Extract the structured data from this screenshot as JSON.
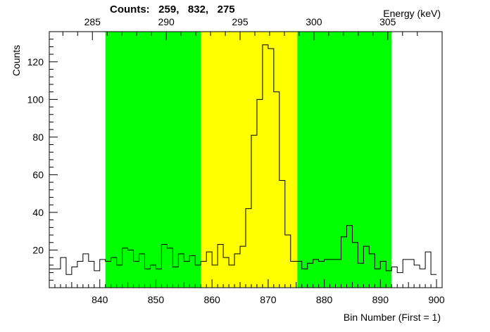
{
  "header": {
    "counts_label": "Counts:",
    "counts_values": [
      "259,",
      "832,",
      "275"
    ]
  },
  "chart_data": {
    "type": "histogram",
    "xlabel": "Bin Number (First = 1)",
    "ylabel": "Counts",
    "top_axis_label": "Energy (keV)",
    "xlim": [
      831,
      901
    ],
    "ylim": [
      0,
      136
    ],
    "x_ticks": [
      840,
      850,
      860,
      870,
      880,
      890,
      900
    ],
    "y_ticks": [
      20,
      40,
      60,
      80,
      100,
      120
    ],
    "top_ticks": [
      285,
      290,
      295,
      300,
      305
    ],
    "top_axis_map": {
      "bin_a": 840,
      "keV_a": 285.5,
      "bin_b": 890,
      "keV_b": 304.5
    },
    "bins": {
      "start": 831,
      "width": 1,
      "counts": [
        10,
        10,
        16,
        7,
        11,
        14,
        18,
        14,
        9,
        15,
        14,
        16,
        12,
        21,
        20,
        14,
        18,
        10,
        12,
        10,
        23,
        21,
        11,
        18,
        14,
        17,
        12,
        14,
        19,
        12,
        23,
        16,
        12,
        18,
        22,
        42,
        81,
        100,
        129,
        127,
        104,
        57,
        28,
        14,
        14,
        10,
        13,
        15,
        14,
        15,
        15,
        15,
        27,
        33,
        24,
        13,
        22,
        18,
        10,
        14,
        9,
        11,
        8,
        15,
        15,
        12,
        10,
        19,
        7
      ]
    },
    "regions": [
      {
        "name": "background-left",
        "from": 841,
        "to": 858,
        "color": "#00ff00"
      },
      {
        "name": "peak",
        "from": 858,
        "to": 875.2,
        "color": "#ffff00"
      },
      {
        "name": "background-right",
        "from": 875.2,
        "to": 892,
        "color": "#00ff00"
      }
    ],
    "line_color": "#000000",
    "grid": false
  }
}
